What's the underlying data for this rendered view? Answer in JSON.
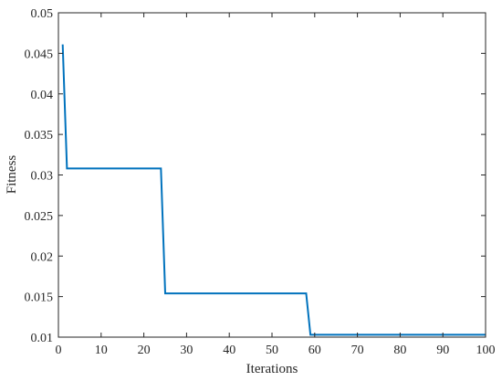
{
  "chart_data": {
    "type": "line",
    "title": "",
    "xlabel": "Iterations",
    "ylabel": "Fitness",
    "xlim": [
      0,
      100
    ],
    "ylim": [
      0.01,
      0.05
    ],
    "xticks": [
      0,
      10,
      20,
      30,
      40,
      50,
      60,
      70,
      80,
      90,
      100
    ],
    "yticks": [
      0.01,
      0.015,
      0.02,
      0.025,
      0.03,
      0.035,
      0.04,
      0.045,
      0.05
    ],
    "ytick_labels": [
      "0.01",
      "0.015",
      "0.02",
      "0.025",
      "0.03",
      "0.035",
      "0.04",
      "0.045",
      "0.05"
    ],
    "grid": false,
    "series": [
      {
        "color": "#0072BD",
        "x": [
          1,
          2,
          24,
          25,
          58,
          59,
          100
        ],
        "y": [
          0.0461,
          0.0308,
          0.0308,
          0.0154,
          0.0154,
          0.0103,
          0.0103
        ]
      }
    ]
  }
}
